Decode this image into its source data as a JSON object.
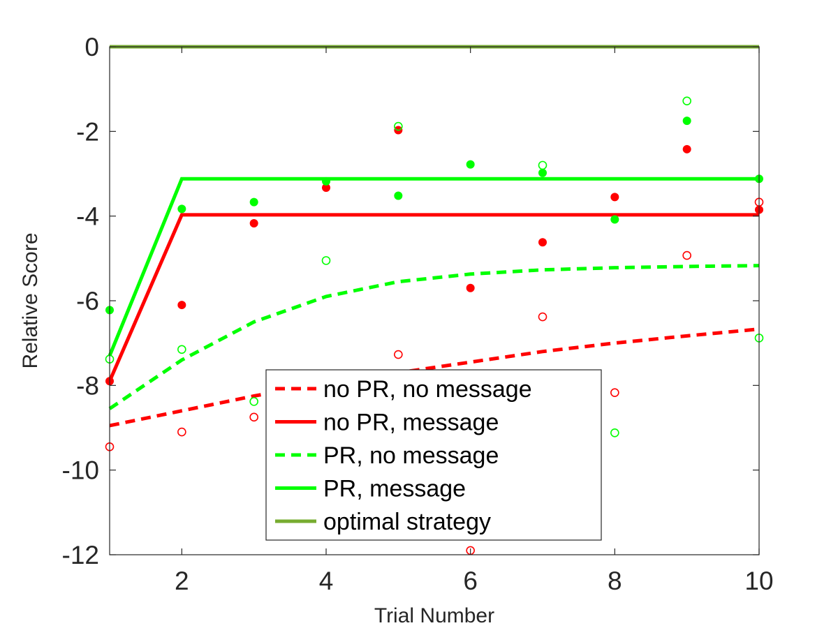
{
  "chart_data": {
    "type": "line",
    "xlabel": "Trial Number",
    "ylabel": "Relative Score",
    "xlim": [
      1,
      10
    ],
    "ylim": [
      -12,
      0
    ],
    "xticks": [
      2,
      4,
      6,
      8,
      10
    ],
    "yticks": [
      0,
      -2,
      -4,
      -6,
      -8,
      -10,
      -12
    ],
    "grid": false,
    "legend_position": "bottom-center",
    "colors": {
      "red": "#ff0000",
      "green": "#00ff00",
      "optimal": "#77ac30",
      "axis": "#262626"
    },
    "series": [
      {
        "name": "no PR, no message",
        "style": "dashed",
        "color": "#ff0000",
        "x": [
          1,
          2,
          3,
          4,
          5,
          6,
          7,
          8,
          9,
          10
        ],
        "values": [
          -8.95,
          -8.6,
          -8.25,
          -7.95,
          -7.7,
          -7.45,
          -7.2,
          -7.0,
          -6.83,
          -6.67
        ]
      },
      {
        "name": "no PR, message",
        "style": "solid",
        "color": "#ff0000",
        "x": [
          1,
          2,
          3,
          4,
          5,
          6,
          7,
          8,
          9,
          10
        ],
        "values": [
          -7.9,
          -3.97,
          -3.97,
          -3.97,
          -3.97,
          -3.97,
          -3.97,
          -3.97,
          -3.97,
          -3.97
        ]
      },
      {
        "name": "PR, no message",
        "style": "dashed",
        "color": "#00ff00",
        "x": [
          1,
          2,
          3,
          4,
          5,
          6,
          7,
          8,
          9,
          10
        ],
        "values": [
          -8.55,
          -7.4,
          -6.5,
          -5.9,
          -5.55,
          -5.37,
          -5.27,
          -5.22,
          -5.19,
          -5.17
        ]
      },
      {
        "name": "PR, message",
        "style": "solid",
        "color": "#00ff00",
        "x": [
          1,
          2,
          3,
          4,
          5,
          6,
          7,
          8,
          9,
          10
        ],
        "values": [
          -7.3,
          -3.12,
          -3.12,
          -3.12,
          -3.12,
          -3.12,
          -3.12,
          -3.12,
          -3.12,
          -3.12
        ]
      },
      {
        "name": "optimal strategy",
        "style": "solid",
        "color": "#77ac30",
        "x": [
          1,
          2,
          3,
          4,
          5,
          6,
          7,
          8,
          9,
          10
        ],
        "values": [
          0,
          0,
          0,
          0,
          0,
          0,
          0,
          0,
          0,
          0
        ]
      }
    ],
    "points": [
      {
        "group": "no PR, no message",
        "marker": "open",
        "color": "#ff0000",
        "x": [
          1,
          2,
          3,
          5,
          6,
          7,
          8,
          9,
          10
        ],
        "y": [
          -9.45,
          -9.1,
          -8.75,
          -7.27,
          -11.9,
          -6.38,
          -8.17,
          -4.93,
          -3.67
        ]
      },
      {
        "group": "no PR, message",
        "marker": "filled",
        "color": "#ff0000",
        "x": [
          1,
          2,
          3,
          4,
          5,
          6,
          7,
          8,
          9,
          10
        ],
        "y": [
          -7.9,
          -6.1,
          -4.17,
          -3.33,
          -1.97,
          -5.7,
          -4.62,
          -3.55,
          -2.42,
          -3.85
        ]
      },
      {
        "group": "PR, no message",
        "marker": "open",
        "color": "#00ff00",
        "x": [
          1,
          2,
          3,
          4,
          5,
          7,
          8,
          9,
          10
        ],
        "y": [
          -7.38,
          -7.15,
          -8.38,
          -5.05,
          -1.88,
          -2.8,
          -9.12,
          -1.28,
          -6.88
        ]
      },
      {
        "group": "PR, message",
        "marker": "filled",
        "color": "#00ff00",
        "x": [
          1,
          2,
          3,
          4,
          5,
          6,
          7,
          8,
          9,
          10
        ],
        "y": [
          -6.22,
          -3.83,
          -3.67,
          -3.18,
          -3.52,
          -2.78,
          -2.98,
          -4.08,
          -1.75,
          -3.12
        ]
      }
    ]
  }
}
